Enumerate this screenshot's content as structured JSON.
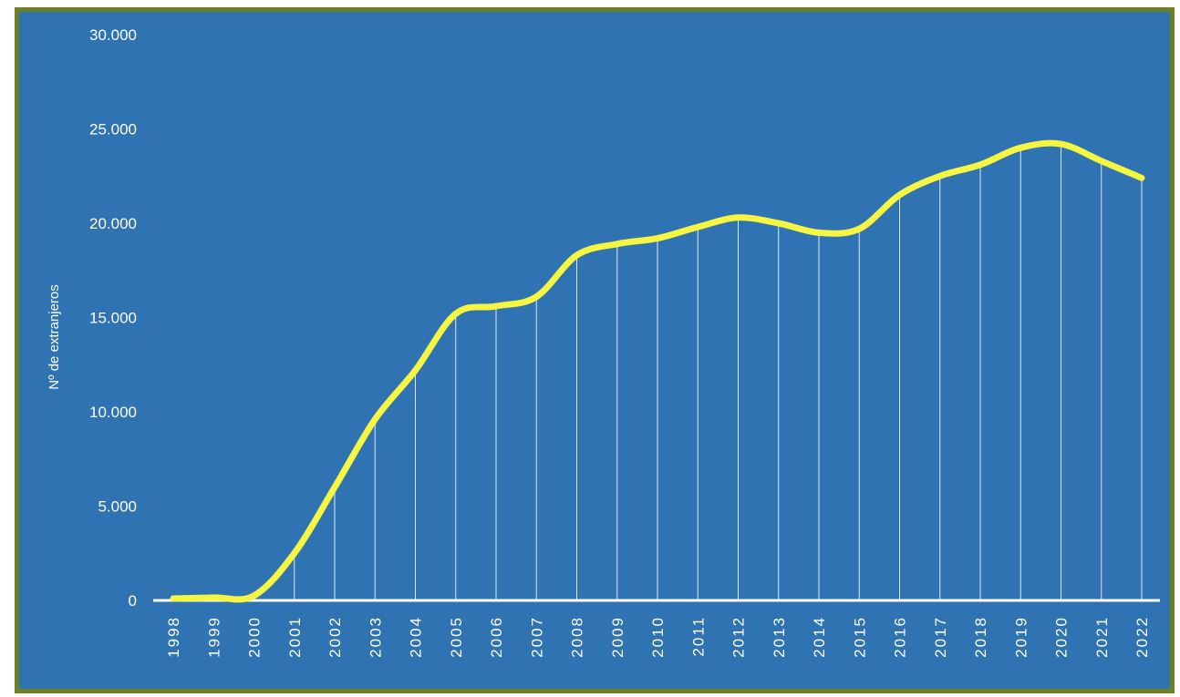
{
  "chart_data": {
    "type": "line",
    "ylabel": "Nº de extranjeros",
    "ylim": [
      0,
      30000
    ],
    "yticks": [
      0,
      5000,
      10000,
      15000,
      20000,
      25000,
      30000
    ],
    "ytick_labels": [
      "0",
      "5.000",
      "10.000",
      "15.000",
      "20.000",
      "25.000",
      "30.000"
    ],
    "categories": [
      "1998",
      "1999",
      "2000",
      "2001",
      "2002",
      "2003",
      "2004",
      "2005",
      "2006",
      "2007",
      "2008",
      "2009",
      "2010",
      "2011",
      "2012",
      "2013",
      "2014",
      "2015",
      "2016",
      "2017",
      "2018",
      "2019",
      "2020",
      "2021",
      "2022"
    ],
    "values": [
      100,
      150,
      250,
      2500,
      6000,
      9600,
      12200,
      15200,
      15600,
      16100,
      18300,
      18900,
      19200,
      19800,
      20300,
      20000,
      19500,
      19700,
      21500,
      22500,
      23100,
      24000,
      24200,
      23300,
      22400
    ],
    "colors": {
      "background": "#2f73b2",
      "border": "#6e7f26",
      "line": "#f5f542",
      "drop_lines": "#ffffff",
      "text": "#ffffff"
    }
  }
}
